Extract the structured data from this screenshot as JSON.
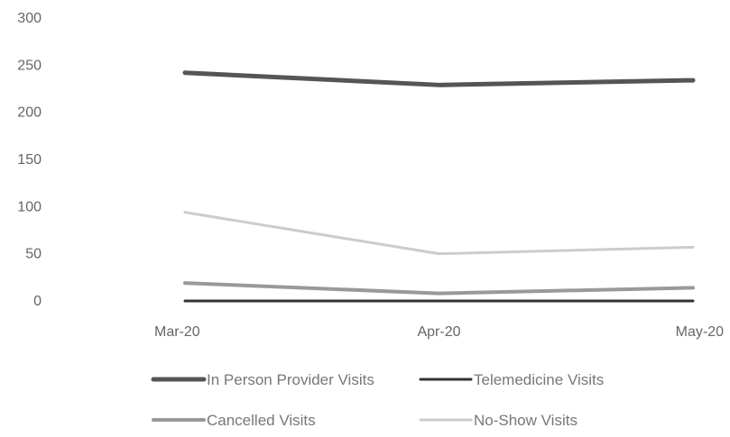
{
  "chart_data": {
    "type": "line",
    "categories": [
      "Mar-20",
      "Apr-20",
      "May-20"
    ],
    "ylim": [
      0,
      300
    ],
    "yticks": [
      0,
      50,
      100,
      150,
      200,
      250,
      300
    ],
    "grid": false,
    "legend_position": "bottom",
    "series": [
      {
        "name": "In Person Provider Visits",
        "values": [
          242,
          229,
          234
        ],
        "color": "#555555"
      },
      {
        "name": "Telemedicine Visits",
        "values": [
          0,
          0,
          0
        ],
        "color": "#333333"
      },
      {
        "name": "Cancelled Visits",
        "values": [
          19,
          8,
          14
        ],
        "color": "#999999"
      },
      {
        "name": "No-Show Visits",
        "values": [
          94,
          50,
          57
        ],
        "color": "#cccccc"
      }
    ]
  }
}
